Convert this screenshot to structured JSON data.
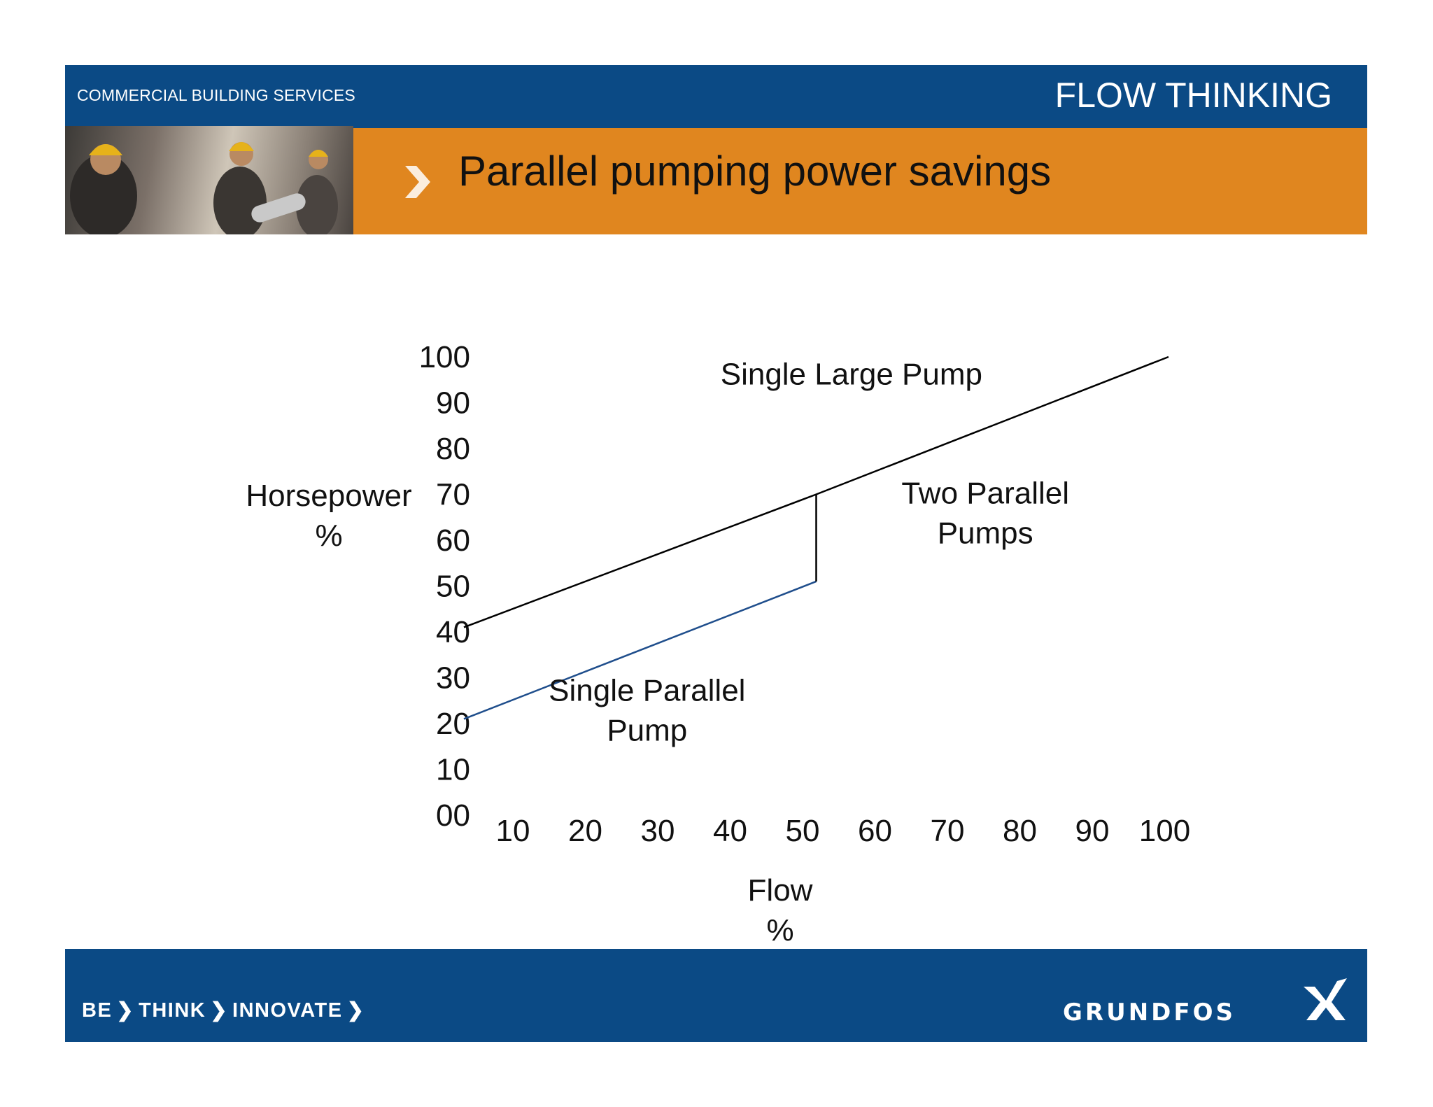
{
  "header": {
    "left_text": "COMMERCIAL BUILDING SERVICES",
    "right_text": "FLOW THINKING"
  },
  "slide": {
    "title": "Parallel pumping power savings"
  },
  "footer": {
    "tagline": [
      "BE",
      "THINK",
      "INNOVATE"
    ],
    "logo_text": "GRUNDFOS"
  },
  "colors": {
    "brand_blue": "#0b4a85",
    "accent_orange": "#e0861f",
    "series_large": "#000000",
    "series_parallel": "#1f4e8c"
  },
  "icons": {
    "chevron": "chevron-right-icon",
    "logo": "grundfos-logo-icon"
  },
  "chart_data": {
    "type": "line",
    "title": "",
    "xlabel": "Flow\n%",
    "ylabel": "Horsepower\n%",
    "xlim": [
      0,
      100
    ],
    "ylim": [
      0,
      100
    ],
    "x_ticks": [
      "10",
      "20",
      "30",
      "40",
      "50",
      "60",
      "70",
      "80",
      "90",
      "100"
    ],
    "y_ticks": [
      "00",
      "10",
      "20",
      "30",
      "40",
      "50",
      "60",
      "70",
      "80",
      "90",
      "100"
    ],
    "grid": false,
    "series": [
      {
        "name": "Single Large Pump",
        "color": "#000000",
        "points": [
          [
            0,
            41
          ],
          [
            50,
            70
          ],
          [
            100,
            100
          ]
        ]
      },
      {
        "name": "Single Parallel Pump",
        "color": "#1f4e8c",
        "points": [
          [
            0,
            21
          ],
          [
            50,
            51
          ]
        ]
      },
      {
        "name": "Two Parallel Pumps",
        "color": "#000000",
        "points": [
          [
            50,
            51
          ],
          [
            50,
            70
          ]
        ]
      }
    ],
    "annotations": [
      {
        "text": "Single Large Pump",
        "x": 55,
        "y": 94
      },
      {
        "text": "Two Parallel\nPumps",
        "x": 74,
        "y": 68
      },
      {
        "text": "Single Parallel\nPump",
        "x": 26,
        "y": 25
      }
    ]
  }
}
